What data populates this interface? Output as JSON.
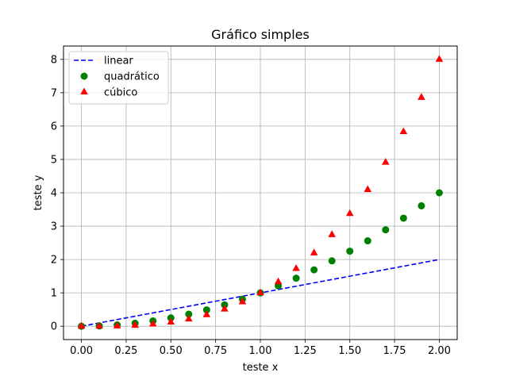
{
  "chart_data": {
    "type": "scatter",
    "title": "Gráfico simples",
    "xlabel": "teste x",
    "ylabel": "teste y",
    "xlim": [
      -0.1,
      2.1
    ],
    "ylim": [
      -0.4,
      8.4
    ],
    "xticks": [
      0.0,
      0.25,
      0.5,
      0.75,
      1.0,
      1.25,
      1.5,
      1.75,
      2.0
    ],
    "xtick_labels": [
      "0.00",
      "0.25",
      "0.50",
      "0.75",
      "1.00",
      "1.25",
      "1.50",
      "1.75",
      "2.00"
    ],
    "yticks": [
      0,
      1,
      2,
      3,
      4,
      5,
      6,
      7,
      8
    ],
    "ytick_labels": [
      "0",
      "1",
      "2",
      "3",
      "4",
      "5",
      "6",
      "7",
      "8"
    ],
    "grid": true,
    "legend_position": "top-left",
    "x": [
      0.0,
      0.1,
      0.2,
      0.3,
      0.4,
      0.5,
      0.6,
      0.7,
      0.8,
      0.9,
      1.0,
      1.1,
      1.2,
      1.3,
      1.4,
      1.5,
      1.6,
      1.7,
      1.8,
      1.9,
      2.0
    ],
    "series": [
      {
        "name": "linear",
        "style": "dashed-line",
        "color": "#0000ff",
        "values": [
          0.0,
          0.1,
          0.2,
          0.3,
          0.4,
          0.5,
          0.6,
          0.7,
          0.8,
          0.9,
          1.0,
          1.1,
          1.2,
          1.3,
          1.4,
          1.5,
          1.6,
          1.7,
          1.8,
          1.9,
          2.0
        ]
      },
      {
        "name": "quadrático",
        "style": "circle-marker",
        "color": "#008000",
        "values": [
          0.0,
          0.01,
          0.04,
          0.09,
          0.16,
          0.25,
          0.36,
          0.49,
          0.64,
          0.81,
          1.0,
          1.21,
          1.44,
          1.69,
          1.96,
          2.25,
          2.56,
          2.89,
          3.24,
          3.61,
          4.0
        ]
      },
      {
        "name": "cúbico",
        "style": "triangle-marker",
        "color": "#ff0000",
        "values": [
          0.0,
          0.001,
          0.008,
          0.027,
          0.064,
          0.125,
          0.216,
          0.343,
          0.512,
          0.729,
          1.0,
          1.331,
          1.728,
          2.197,
          2.744,
          3.375,
          4.096,
          4.913,
          5.832,
          6.859,
          8.0
        ]
      }
    ]
  }
}
